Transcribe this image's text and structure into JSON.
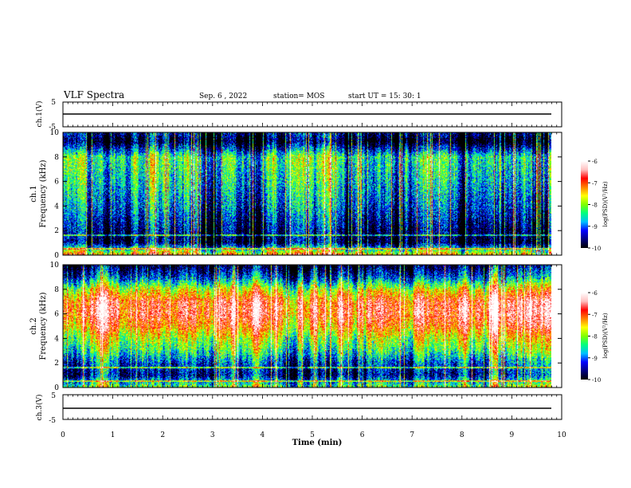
{
  "header": {
    "title": "VLF Spectra",
    "date": "Sep. 6 , 2022",
    "station": "station= MOS",
    "start": "start UT = 15: 30: 1"
  },
  "chart_data": [
    {
      "type": "line",
      "panel": "ch.1 voltage",
      "ylabel": "ch.1(V)",
      "ylim": [
        -5,
        5
      ],
      "yticks": [
        "5",
        "-5"
      ],
      "level": 0
    },
    {
      "type": "heatmap",
      "panel": "ch.1 spectrogram",
      "ylabel_line1": "ch.1",
      "ylabel_line2": "Frequency (kHz)",
      "ylim": [
        0,
        10
      ],
      "yticks": [
        "0",
        "2",
        "4",
        "6",
        "8",
        "10"
      ],
      "colorbar": {
        "label": "log(PSD)(V²/Hz)",
        "range": [
          -10,
          -6
        ],
        "ticks": [
          "-6",
          "-7",
          "-8",
          "-9",
          "-10"
        ]
      },
      "intensity_profile": [
        {
          "kHz": 0,
          "log_psd": -7.2
        },
        {
          "kHz": 1,
          "log_psd": -9.8
        },
        {
          "kHz": 2,
          "log_psd": -9.6
        },
        {
          "kHz": 4,
          "log_psd": -9.0
        },
        {
          "kHz": 6,
          "log_psd": -8.6
        },
        {
          "kHz": 8,
          "log_psd": -8.3
        },
        {
          "kHz": 9.3,
          "log_psd": -10
        },
        {
          "kHz": 10,
          "log_psd": -9.5
        }
      ]
    },
    {
      "type": "heatmap",
      "panel": "ch.2 spectrogram",
      "ylabel_line1": "ch.2",
      "ylabel_line2": "Frequency (kHz)",
      "ylim": [
        0,
        10
      ],
      "yticks": [
        "0",
        "2",
        "4",
        "6",
        "8",
        "10"
      ],
      "colorbar": {
        "label": "log(PSD)(V²/Hz)",
        "range": [
          -10,
          -6
        ],
        "ticks": [
          "-6",
          "-7",
          "-8",
          "-9",
          "-10"
        ]
      },
      "intensity_profile": [
        {
          "kHz": 0,
          "log_psd": -8.0
        },
        {
          "kHz": 1,
          "log_psd": -9.4
        },
        {
          "kHz": 2,
          "log_psd": -9.0
        },
        {
          "kHz": 3,
          "log_psd": -8.2
        },
        {
          "kHz": 4,
          "log_psd": -7.7
        },
        {
          "kHz": 5,
          "log_psd": -7.0
        },
        {
          "kHz": 6,
          "log_psd": -6.6
        },
        {
          "kHz": 7,
          "log_psd": -6.7
        },
        {
          "kHz": 8,
          "log_psd": -7.6
        },
        {
          "kHz": 9,
          "log_psd": -9.0
        },
        {
          "kHz": 10,
          "log_psd": -9.8
        }
      ]
    },
    {
      "type": "line",
      "panel": "ch.3 voltage",
      "ylabel": "ch.3(V)",
      "ylim": [
        -5,
        5
      ],
      "yticks": [
        "5",
        "-5"
      ],
      "level": 0
    }
  ],
  "xaxis": {
    "label": "Time (min)",
    "range": [
      0,
      10
    ],
    "data_end": 9.8,
    "ticks": [
      "0",
      "1",
      "2",
      "3",
      "4",
      "5",
      "6",
      "7",
      "8",
      "9",
      "10"
    ]
  },
  "colormap": [
    "#000000",
    "#00007f",
    "#0000ff",
    "#00bfff",
    "#00ff7f",
    "#7fff00",
    "#ffff00",
    "#ff7f00",
    "#ff0000",
    "#ffc0c0",
    "#ffffff"
  ]
}
